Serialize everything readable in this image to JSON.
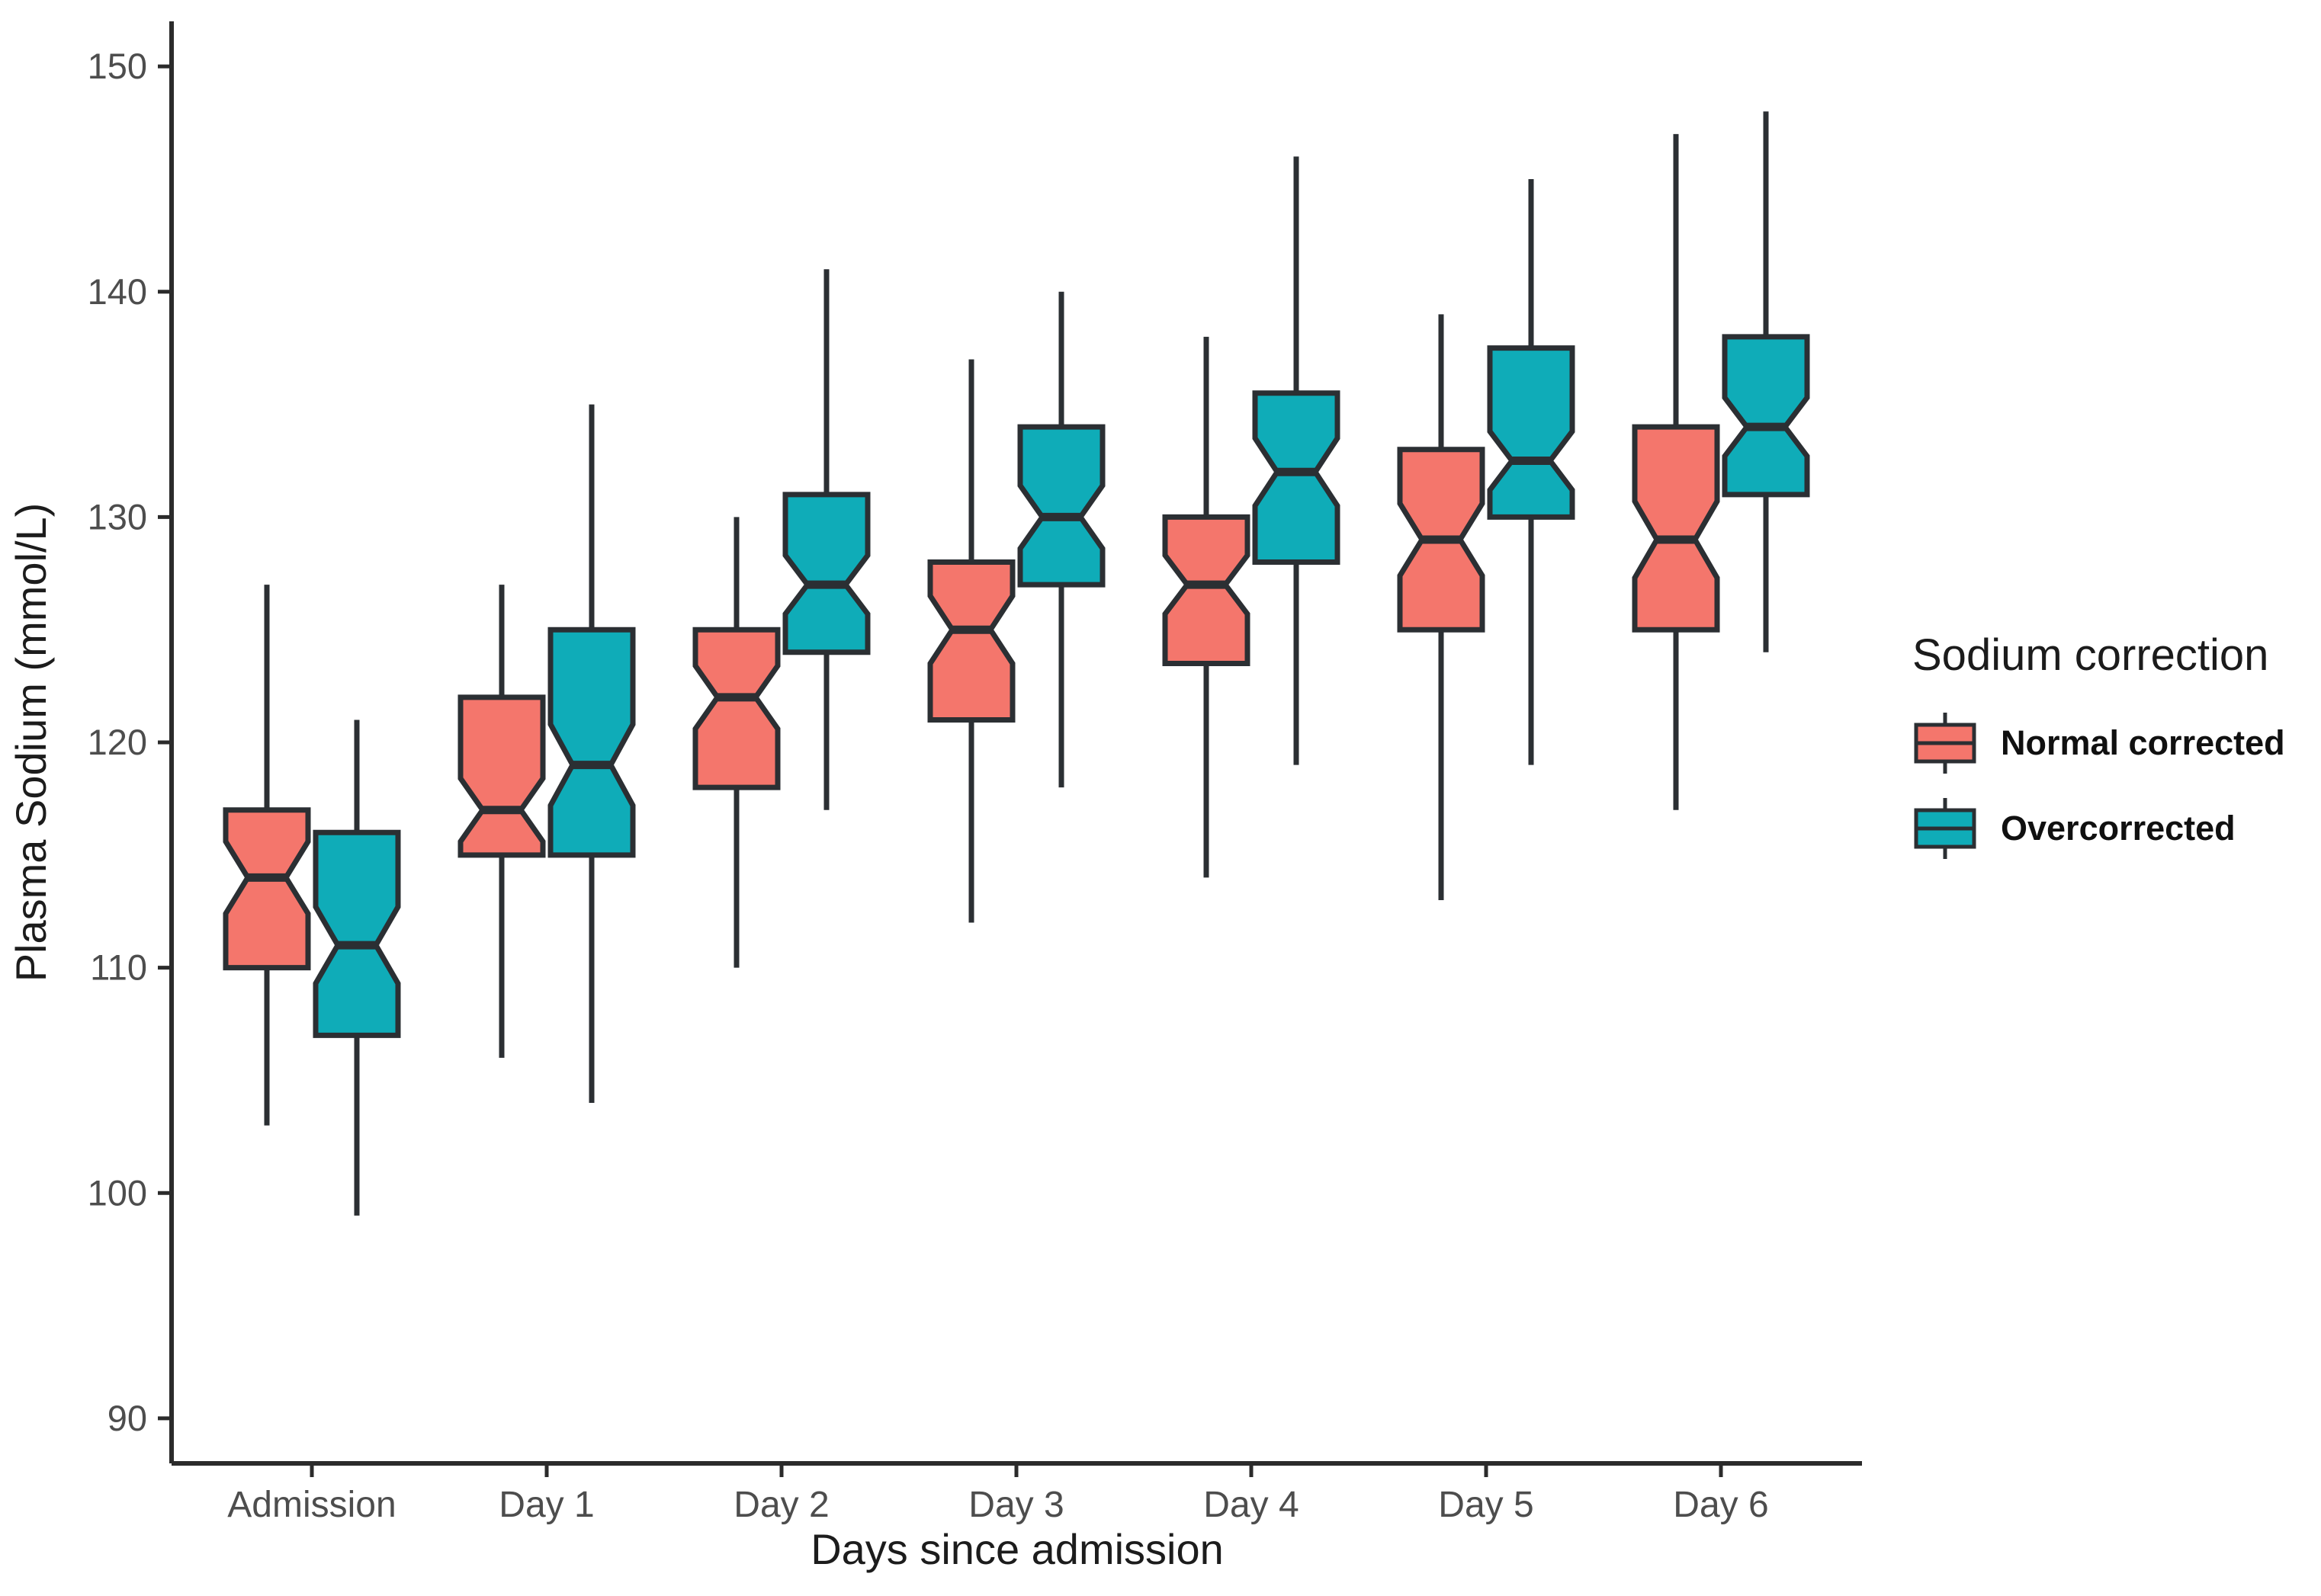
{
  "chart_data": {
    "type": "boxplot",
    "title": "",
    "xlabel": "Days since admission",
    "ylabel": "Plasma Sodium (mmol/L)",
    "ylim": [
      88,
      152
    ],
    "yticks": [
      90,
      100,
      110,
      120,
      130,
      140,
      150
    ],
    "categories": [
      "Admission",
      "Day 1",
      "Day 2",
      "Day 3",
      "Day 4",
      "Day 5",
      "Day 6"
    ],
    "grid": false,
    "notched": true,
    "legend": {
      "title": "Sodium correction",
      "position": "right"
    },
    "series": [
      {
        "name": "Normal corrected",
        "color": "#F4766C",
        "boxes": [
          {
            "category": "Admission",
            "low": 103,
            "q1": 110,
            "median": 114,
            "q3": 117,
            "high": 127,
            "notch_lo": 112.4,
            "notch_hi": 115.6
          },
          {
            "category": "Day 1",
            "low": 106,
            "q1": 115,
            "median": 117,
            "q3": 122,
            "high": 127,
            "notch_lo": 115.6,
            "notch_hi": 118.4
          },
          {
            "category": "Day 2",
            "low": 110,
            "q1": 118,
            "median": 122,
            "q3": 125,
            "high": 130,
            "notch_lo": 120.6,
            "notch_hi": 123.4
          },
          {
            "category": "Day 3",
            "low": 112,
            "q1": 121,
            "median": 125,
            "q3": 128,
            "high": 137,
            "notch_lo": 123.5,
            "notch_hi": 126.5
          },
          {
            "category": "Day 4",
            "low": 114,
            "q1": 123.5,
            "median": 127,
            "q3": 130,
            "high": 138,
            "notch_lo": 125.7,
            "notch_hi": 128.3
          },
          {
            "category": "Day 5",
            "low": 113,
            "q1": 125,
            "median": 129,
            "q3": 133,
            "high": 139,
            "notch_lo": 127.4,
            "notch_hi": 130.6
          },
          {
            "category": "Day 6",
            "low": 117,
            "q1": 125,
            "median": 129,
            "q3": 134,
            "high": 147,
            "notch_lo": 127.3,
            "notch_hi": 130.7
          }
        ]
      },
      {
        "name": "Overcorrected",
        "color": "#0FACB8",
        "boxes": [
          {
            "category": "Admission",
            "low": 99,
            "q1": 107,
            "median": 111,
            "q3": 116,
            "high": 121,
            "notch_lo": 109.3,
            "notch_hi": 112.7
          },
          {
            "category": "Day 1",
            "low": 104,
            "q1": 115,
            "median": 119,
            "q3": 125,
            "high": 135,
            "notch_lo": 117.2,
            "notch_hi": 120.8
          },
          {
            "category": "Day 2",
            "low": 117,
            "q1": 124,
            "median": 127,
            "q3": 131,
            "high": 141,
            "notch_lo": 125.7,
            "notch_hi": 128.3
          },
          {
            "category": "Day 3",
            "low": 118,
            "q1": 127,
            "median": 130,
            "q3": 134,
            "high": 140,
            "notch_lo": 128.6,
            "notch_hi": 131.4
          },
          {
            "category": "Day 4",
            "low": 119,
            "q1": 128,
            "median": 132,
            "q3": 135.5,
            "high": 146,
            "notch_lo": 130.5,
            "notch_hi": 133.5
          },
          {
            "category": "Day 5",
            "low": 119,
            "q1": 130,
            "median": 132.5,
            "q3": 137.5,
            "high": 145,
            "notch_lo": 131.2,
            "notch_hi": 133.8
          },
          {
            "category": "Day 6",
            "low": 124,
            "q1": 131,
            "median": 134,
            "q3": 138,
            "high": 148,
            "notch_lo": 132.7,
            "notch_hi": 135.3
          }
        ]
      }
    ],
    "colors": {
      "outline": "#2B2F33",
      "axis_line": "#2B2B2B",
      "tick_text": "#4D4D4D",
      "axis_text": "#1C1C1C"
    }
  }
}
